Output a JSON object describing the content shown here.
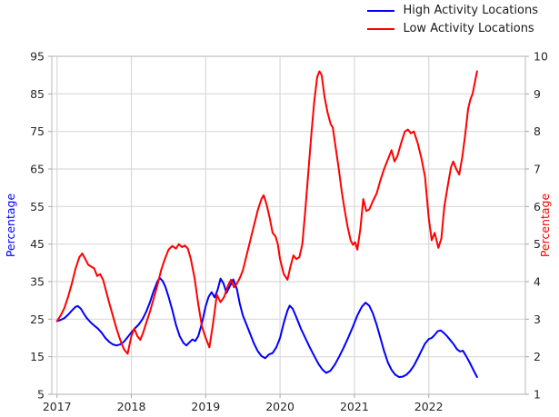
{
  "legend": {
    "items": [
      {
        "label": "High Activity Locations",
        "color": "#0000ff"
      },
      {
        "label": "Low Activity Locations",
        "color": "#ff0000"
      }
    ]
  },
  "chart_data": {
    "type": "line",
    "title": "",
    "grid": true,
    "legend_position": "top-right-outside",
    "xlim": [
      2016.93,
      2023.3
    ],
    "x_ticks": [
      2017,
      2018,
      2019,
      2020,
      2021,
      2022
    ],
    "left_axis": {
      "label": "Percentage",
      "color": "#0000ff",
      "lim": [
        5,
        95
      ],
      "ticks": [
        5,
        15,
        25,
        35,
        45,
        55,
        65,
        75,
        85,
        95
      ]
    },
    "right_axis": {
      "label": "Percentage",
      "color": "#ff0000",
      "lim": [
        1,
        10
      ],
      "ticks": [
        1,
        2,
        3,
        4,
        5,
        6,
        7,
        8,
        9,
        10
      ]
    },
    "series": [
      {
        "name": "High Activity Locations",
        "color": "#0000ff",
        "axis": "left",
        "x": [
          2017.0,
          2017.05,
          2017.1,
          2017.15,
          2017.2,
          2017.25,
          2017.28,
          2017.32,
          2017.36,
          2017.4,
          2017.45,
          2017.5,
          2017.55,
          2017.6,
          2017.65,
          2017.7,
          2017.75,
          2017.8,
          2017.85,
          2017.9,
          2017.95,
          2018.0,
          2018.05,
          2018.1,
          2018.15,
          2018.2,
          2018.25,
          2018.3,
          2018.35,
          2018.38,
          2018.42,
          2018.46,
          2018.5,
          2018.55,
          2018.6,
          2018.65,
          2018.7,
          2018.74,
          2018.78,
          2018.82,
          2018.86,
          2018.9,
          2018.95,
          2019.0,
          2019.04,
          2019.08,
          2019.12,
          2019.16,
          2019.2,
          2019.24,
          2019.28,
          2019.33,
          2019.37,
          2019.42,
          2019.46,
          2019.5,
          2019.55,
          2019.6,
          2019.65,
          2019.7,
          2019.75,
          2019.8,
          2019.85,
          2019.9,
          2019.95,
          2020.0,
          2020.05,
          2020.1,
          2020.13,
          2020.17,
          2020.22,
          2020.28,
          2020.34,
          2020.4,
          2020.46,
          2020.52,
          2020.57,
          2020.62,
          2020.68,
          2020.74,
          2020.8,
          2020.86,
          2020.92,
          2020.98,
          2021.04,
          2021.1,
          2021.15,
          2021.2,
          2021.25,
          2021.3,
          2021.35,
          2021.4,
          2021.45,
          2021.5,
          2021.55,
          2021.6,
          2021.65,
          2021.7,
          2021.75,
          2021.8,
          2021.85,
          2021.9,
          2021.95,
          2022.0,
          2022.04,
          2022.08,
          2022.12,
          2022.16,
          2022.2,
          2022.25,
          2022.3,
          2022.34,
          2022.38,
          2022.42,
          2022.46,
          2022.5,
          2022.55,
          2022.6,
          2022.65
        ],
        "y": [
          24.5,
          24.8,
          25.3,
          26.2,
          27.3,
          28.3,
          28.5,
          27.8,
          26.5,
          25.3,
          24.2,
          23.3,
          22.5,
          21.4,
          20.0,
          19.0,
          18.3,
          18.0,
          18.3,
          19.0,
          20.2,
          21.5,
          22.6,
          23.6,
          25.0,
          27.0,
          29.5,
          32.5,
          35.0,
          36.0,
          35.2,
          33.5,
          31.0,
          27.5,
          23.5,
          20.5,
          18.7,
          18.0,
          18.8,
          19.6,
          19.2,
          20.5,
          24.0,
          28.5,
          31.0,
          32.2,
          30.8,
          32.8,
          35.8,
          34.5,
          32.0,
          34.0,
          35.6,
          33.0,
          29.0,
          26.0,
          23.5,
          21.0,
          18.5,
          16.5,
          15.2,
          14.6,
          15.6,
          16.0,
          17.5,
          20.0,
          24.0,
          27.3,
          28.6,
          27.8,
          25.5,
          22.5,
          20.0,
          17.5,
          15.2,
          13.0,
          11.6,
          10.7,
          11.3,
          13.0,
          15.2,
          17.6,
          20.2,
          23.0,
          26.0,
          28.3,
          29.4,
          28.6,
          26.5,
          23.5,
          20.0,
          16.5,
          13.5,
          11.5,
          10.2,
          9.6,
          9.7,
          10.2,
          11.2,
          12.6,
          14.5,
          16.5,
          18.5,
          19.7,
          20.0,
          20.8,
          21.8,
          22.0,
          21.4,
          20.4,
          19.2,
          18.2,
          17.0,
          16.4,
          16.6,
          15.3,
          13.5,
          11.5,
          9.6
        ]
      },
      {
        "name": "Low Activity Locations",
        "color": "#ff0000",
        "axis": "right",
        "x": [
          2017.0,
          2017.05,
          2017.1,
          2017.15,
          2017.2,
          2017.25,
          2017.3,
          2017.34,
          2017.38,
          2017.42,
          2017.46,
          2017.5,
          2017.54,
          2017.58,
          2017.62,
          2017.66,
          2017.7,
          2017.75,
          2017.8,
          2017.85,
          2017.9,
          2017.95,
          2018.0,
          2018.04,
          2018.08,
          2018.12,
          2018.16,
          2018.2,
          2018.25,
          2018.3,
          2018.35,
          2018.4,
          2018.45,
          2018.5,
          2018.55,
          2018.6,
          2018.64,
          2018.68,
          2018.72,
          2018.76,
          2018.8,
          2018.85,
          2018.9,
          2018.95,
          2019.0,
          2019.05,
          2019.1,
          2019.15,
          2019.2,
          2019.25,
          2019.3,
          2019.34,
          2019.38,
          2019.42,
          2019.46,
          2019.5,
          2019.55,
          2019.6,
          2019.65,
          2019.7,
          2019.75,
          2019.78,
          2019.82,
          2019.86,
          2019.9,
          2019.94,
          2019.97,
          2020.0,
          2020.05,
          2020.1,
          2020.14,
          2020.18,
          2020.22,
          2020.26,
          2020.3,
          2020.34,
          2020.38,
          2020.42,
          2020.46,
          2020.5,
          2020.53,
          2020.56,
          2020.6,
          2020.64,
          2020.68,
          2020.71,
          2020.75,
          2020.79,
          2020.83,
          2020.87,
          2020.91,
          2020.95,
          2020.98,
          2021.01,
          2021.04,
          2021.08,
          2021.12,
          2021.16,
          2021.2,
          2021.25,
          2021.3,
          2021.35,
          2021.4,
          2021.45,
          2021.5,
          2021.54,
          2021.58,
          2021.63,
          2021.68,
          2021.72,
          2021.76,
          2021.8,
          2021.85,
          2021.9,
          2021.95,
          2022.0,
          2022.04,
          2022.08,
          2022.13,
          2022.17,
          2022.21,
          2022.26,
          2022.3,
          2022.33,
          2022.37,
          2022.41,
          2022.45,
          2022.49,
          2022.53,
          2022.56,
          2022.59,
          2022.62,
          2022.65
        ],
        "y": [
          2.95,
          3.1,
          3.3,
          3.6,
          3.95,
          4.35,
          4.65,
          4.75,
          4.6,
          4.45,
          4.4,
          4.35,
          4.15,
          4.2,
          4.05,
          3.75,
          3.45,
          3.1,
          2.75,
          2.45,
          2.2,
          2.08,
          2.55,
          2.75,
          2.55,
          2.45,
          2.65,
          2.9,
          3.2,
          3.55,
          3.9,
          4.3,
          4.6,
          4.85,
          4.95,
          4.88,
          5.0,
          4.92,
          4.96,
          4.88,
          4.6,
          4.1,
          3.4,
          2.8,
          2.5,
          2.25,
          2.9,
          3.65,
          3.45,
          3.6,
          3.9,
          4.05,
          3.85,
          3.95,
          4.1,
          4.3,
          4.7,
          5.1,
          5.5,
          5.9,
          6.2,
          6.3,
          6.05,
          5.7,
          5.3,
          5.2,
          5.0,
          4.6,
          4.2,
          4.05,
          4.4,
          4.7,
          4.6,
          4.65,
          5.0,
          5.9,
          6.9,
          7.9,
          8.8,
          9.45,
          9.6,
          9.5,
          8.9,
          8.5,
          8.2,
          8.1,
          7.55,
          7.0,
          6.4,
          5.9,
          5.45,
          5.1,
          4.98,
          5.05,
          4.85,
          5.4,
          6.2,
          5.88,
          5.92,
          6.15,
          6.35,
          6.7,
          7.0,
          7.25,
          7.5,
          7.2,
          7.35,
          7.7,
          8.0,
          8.05,
          7.95,
          8.0,
          7.7,
          7.3,
          6.8,
          5.7,
          5.1,
          5.3,
          4.9,
          5.15,
          6.0,
          6.6,
          7.05,
          7.2,
          7.0,
          6.85,
          7.3,
          7.9,
          8.6,
          8.85,
          9.0,
          9.3,
          9.6
        ]
      }
    ]
  }
}
